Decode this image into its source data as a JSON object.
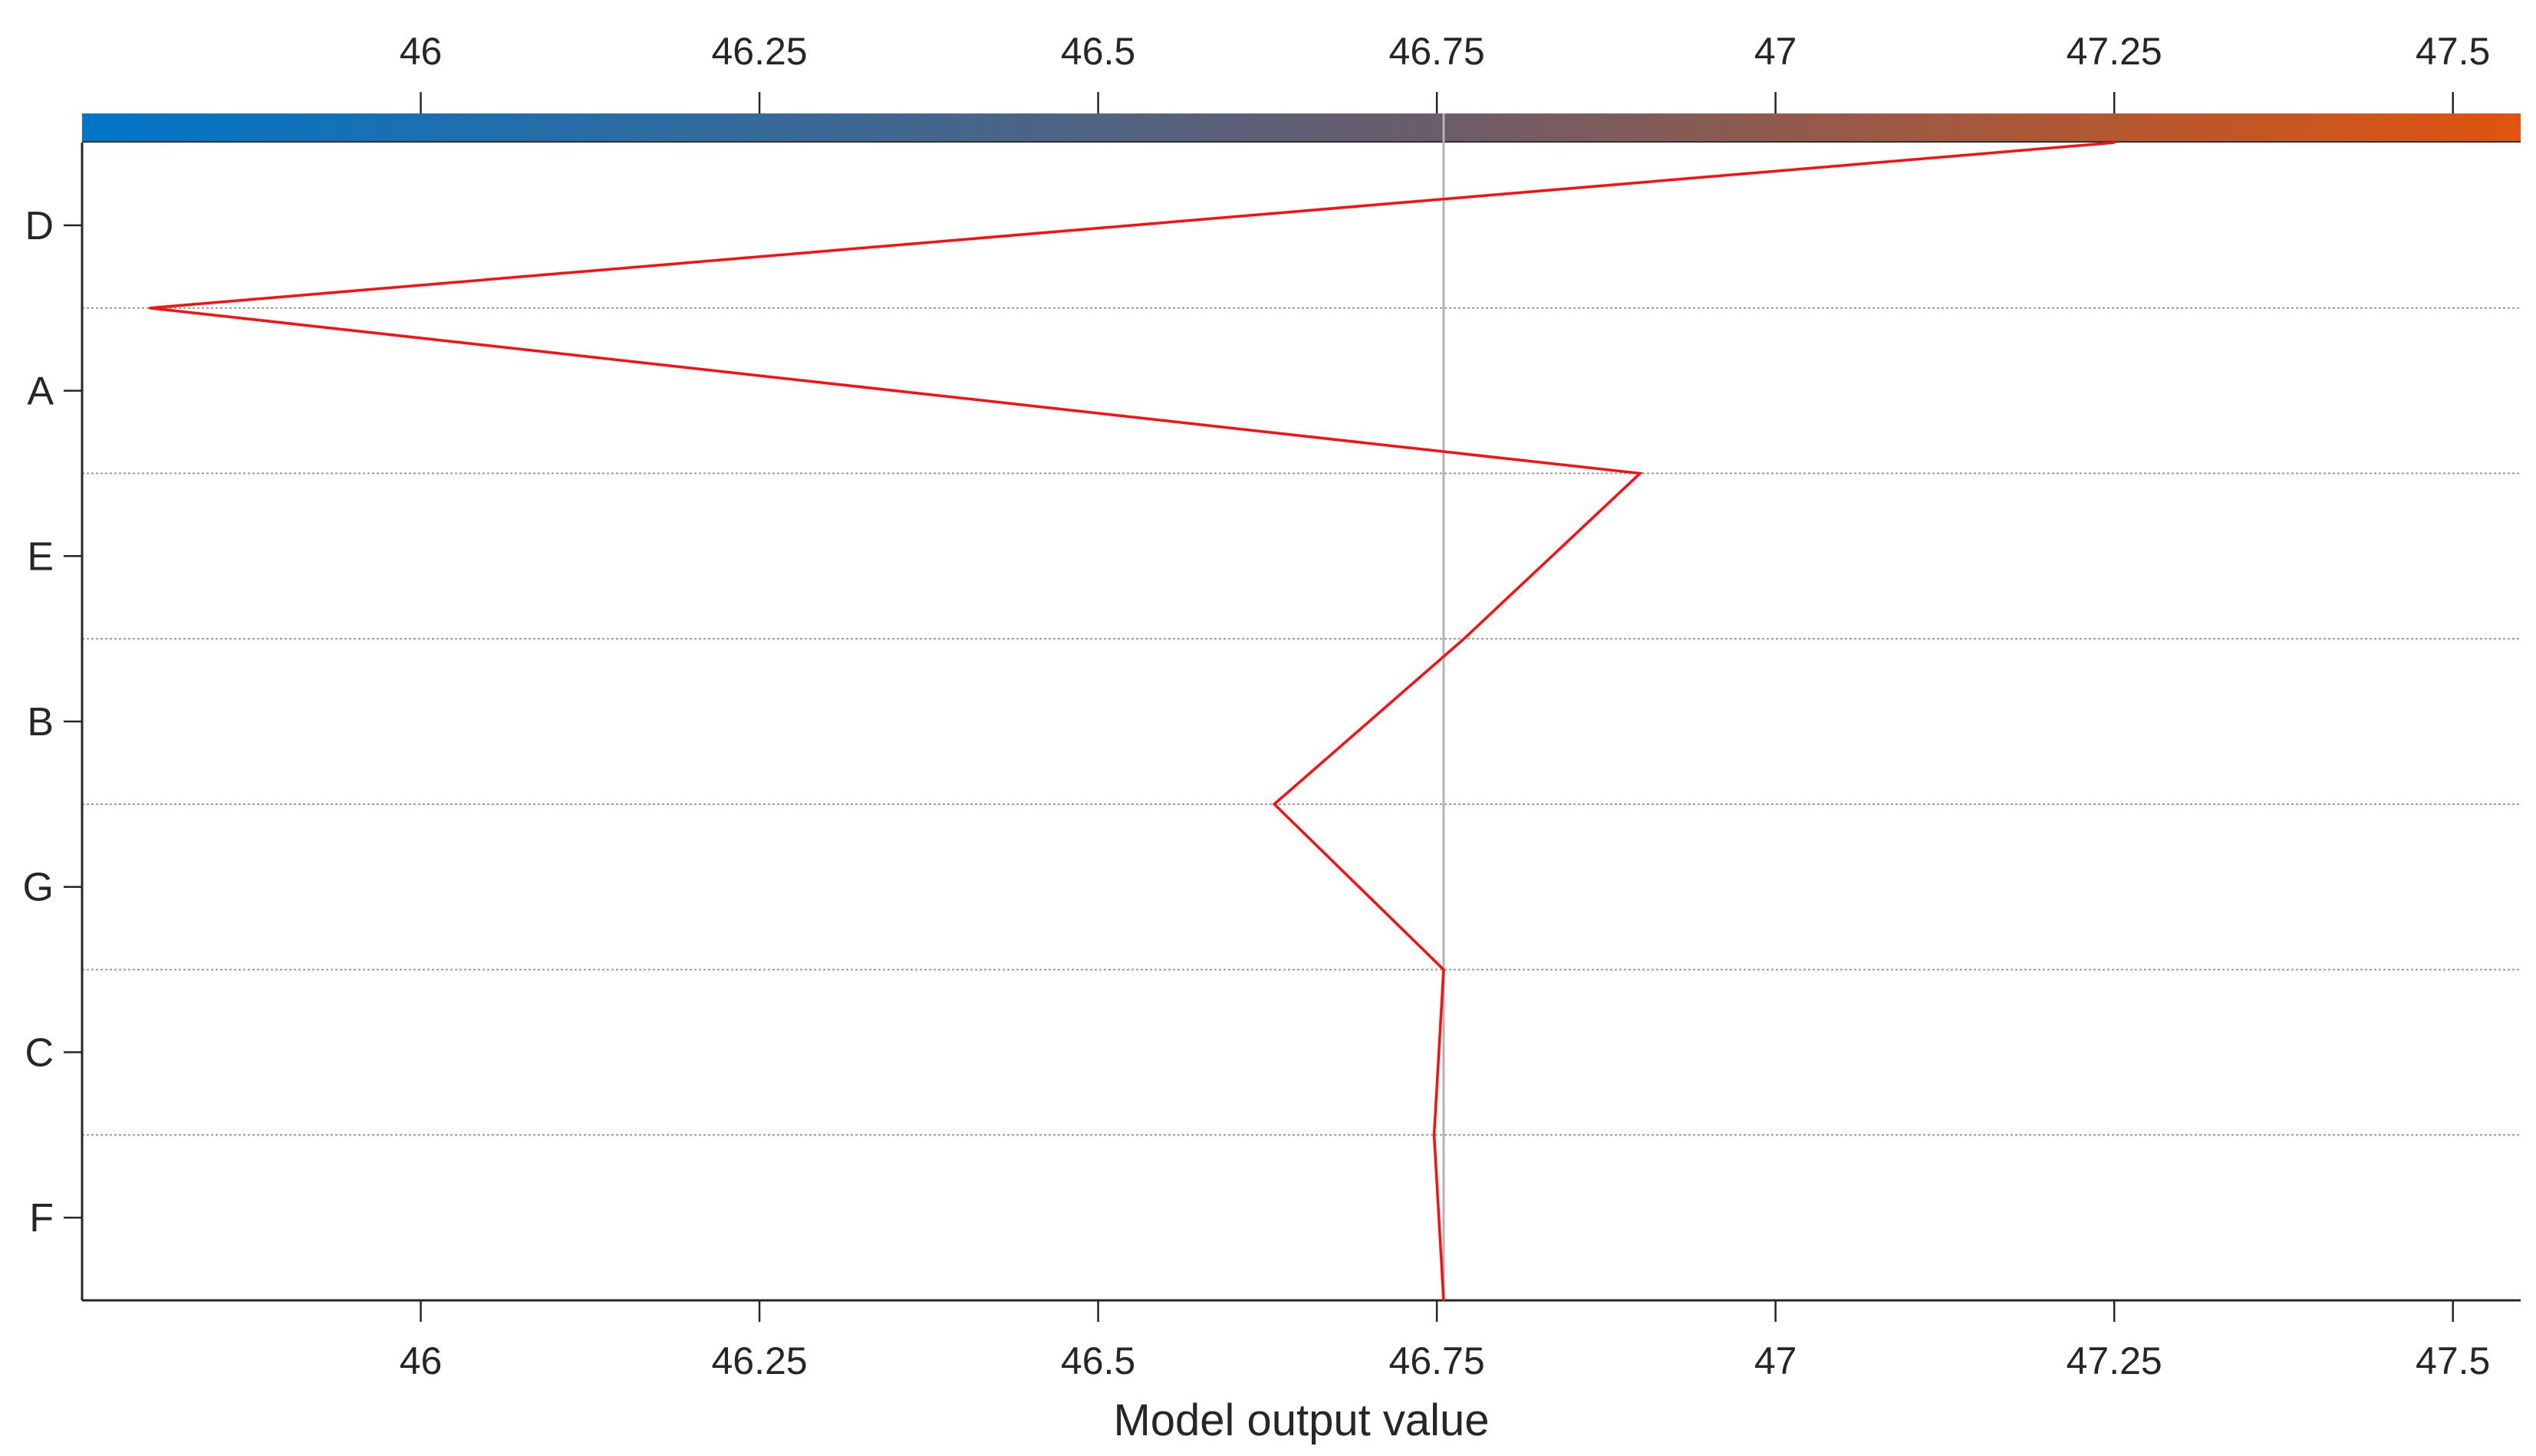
{
  "chart_data": {
    "type": "line",
    "title": "",
    "xlabel": "Model output value",
    "ylabel": "",
    "xlim": [
      45.75,
      47.55
    ],
    "x_ticks": [
      46,
      46.25,
      46.5,
      46.75,
      47,
      47.25,
      47.5
    ],
    "x_tick_labels": [
      "46",
      "46.25",
      "46.5",
      "46.75",
      "47",
      "47.25",
      "47.5"
    ],
    "features": [
      "D",
      "A",
      "E",
      "B",
      "G",
      "C",
      "F"
    ],
    "base_value": 46.755,
    "path": [
      {
        "boundary": "top",
        "value": 47.25
      },
      {
        "boundary": "D|A",
        "value": 45.8
      },
      {
        "boundary": "A|E",
        "value": 46.9
      },
      {
        "boundary": "E|B",
        "value": 46.77
      },
      {
        "boundary": "B|G",
        "value": 46.63
      },
      {
        "boundary": "G|C",
        "value": 46.755
      },
      {
        "boundary": "C|F",
        "value": 46.748
      },
      {
        "boundary": "bottom",
        "value": 46.755
      }
    ],
    "line_color": "#ff0d0d",
    "colorbar": {
      "low_color": "#0076c8",
      "mid_color": "#6a5d6b",
      "high_color": "#e0540f"
    },
    "grid": "dotted-horizontal"
  }
}
